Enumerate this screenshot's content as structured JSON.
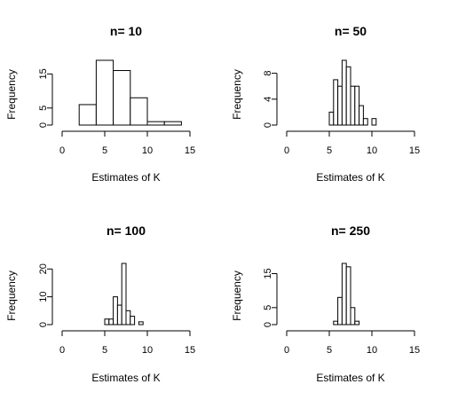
{
  "chart_data": [
    {
      "type": "bar",
      "title": "n= 10",
      "xlabel": "Estimates of K",
      "ylabel": "Frequency",
      "xlim": [
        0,
        15
      ],
      "ylim": [
        0,
        19
      ],
      "x_ticks": [
        "0",
        "5",
        "10",
        "15"
      ],
      "y_ticks": [
        "0",
        "5",
        "15"
      ],
      "bins": [
        {
          "x0": 2,
          "x1": 4,
          "count": 6
        },
        {
          "x0": 4,
          "x1": 6,
          "count": 19
        },
        {
          "x0": 6,
          "x1": 8,
          "count": 16
        },
        {
          "x0": 8,
          "x1": 10,
          "count": 8
        },
        {
          "x0": 10,
          "x1": 12,
          "count": 1
        },
        {
          "x0": 12,
          "x1": 14,
          "count": 1
        }
      ],
      "grid": false
    },
    {
      "type": "bar",
      "title": "n= 50",
      "xlabel": "Estimates of K",
      "ylabel": "Frequency",
      "xlim": [
        0,
        15
      ],
      "ylim": [
        0,
        10
      ],
      "x_ticks": [
        "0",
        "5",
        "10",
        "15"
      ],
      "y_ticks": [
        "0",
        "4",
        "8"
      ],
      "bins": [
        {
          "x0": 5.0,
          "x1": 5.5,
          "count": 2
        },
        {
          "x0": 5.5,
          "x1": 6.0,
          "count": 7
        },
        {
          "x0": 6.0,
          "x1": 6.5,
          "count": 6
        },
        {
          "x0": 6.5,
          "x1": 7.0,
          "count": 10
        },
        {
          "x0": 7.0,
          "x1": 7.5,
          "count": 9
        },
        {
          "x0": 7.5,
          "x1": 8.0,
          "count": 6
        },
        {
          "x0": 8.0,
          "x1": 8.5,
          "count": 6
        },
        {
          "x0": 8.5,
          "x1": 9.0,
          "count": 3
        },
        {
          "x0": 9.0,
          "x1": 9.5,
          "count": 1
        },
        {
          "x0": 9.5,
          "x1": 10.0,
          "count": 0
        },
        {
          "x0": 10.0,
          "x1": 10.5,
          "count": 1
        }
      ],
      "grid": false
    },
    {
      "type": "bar",
      "title": "n= 100",
      "xlabel": "Estimates of K",
      "ylabel": "Frequency",
      "xlim": [
        0,
        15
      ],
      "ylim": [
        0,
        22
      ],
      "x_ticks": [
        "0",
        "5",
        "10",
        "15"
      ],
      "y_ticks": [
        "0",
        "10",
        "20"
      ],
      "bins": [
        {
          "x0": 5.0,
          "x1": 5.5,
          "count": 2
        },
        {
          "x0": 5.5,
          "x1": 6.0,
          "count": 2
        },
        {
          "x0": 6.0,
          "x1": 6.5,
          "count": 10
        },
        {
          "x0": 6.5,
          "x1": 7.0,
          "count": 7
        },
        {
          "x0": 7.0,
          "x1": 7.5,
          "count": 22
        },
        {
          "x0": 7.5,
          "x1": 8.0,
          "count": 5
        },
        {
          "x0": 8.0,
          "x1": 8.5,
          "count": 3
        },
        {
          "x0": 8.5,
          "x1": 9.0,
          "count": 0
        },
        {
          "x0": 9.0,
          "x1": 9.5,
          "count": 1
        }
      ],
      "grid": false
    },
    {
      "type": "bar",
      "title": "n= 250",
      "xlabel": "Estimates of K",
      "ylabel": "Frequency",
      "xlim": [
        0,
        15
      ],
      "ylim": [
        0,
        18
      ],
      "x_ticks": [
        "0",
        "5",
        "10",
        "15"
      ],
      "y_ticks": [
        "0",
        "5",
        "15"
      ],
      "bins": [
        {
          "x0": 5.5,
          "x1": 6.0,
          "count": 1
        },
        {
          "x0": 6.0,
          "x1": 6.5,
          "count": 8
        },
        {
          "x0": 6.5,
          "x1": 7.0,
          "count": 18
        },
        {
          "x0": 7.0,
          "x1": 7.5,
          "count": 17
        },
        {
          "x0": 7.5,
          "x1": 8.0,
          "count": 5
        },
        {
          "x0": 8.0,
          "x1": 8.5,
          "count": 1
        }
      ],
      "grid": false
    }
  ]
}
